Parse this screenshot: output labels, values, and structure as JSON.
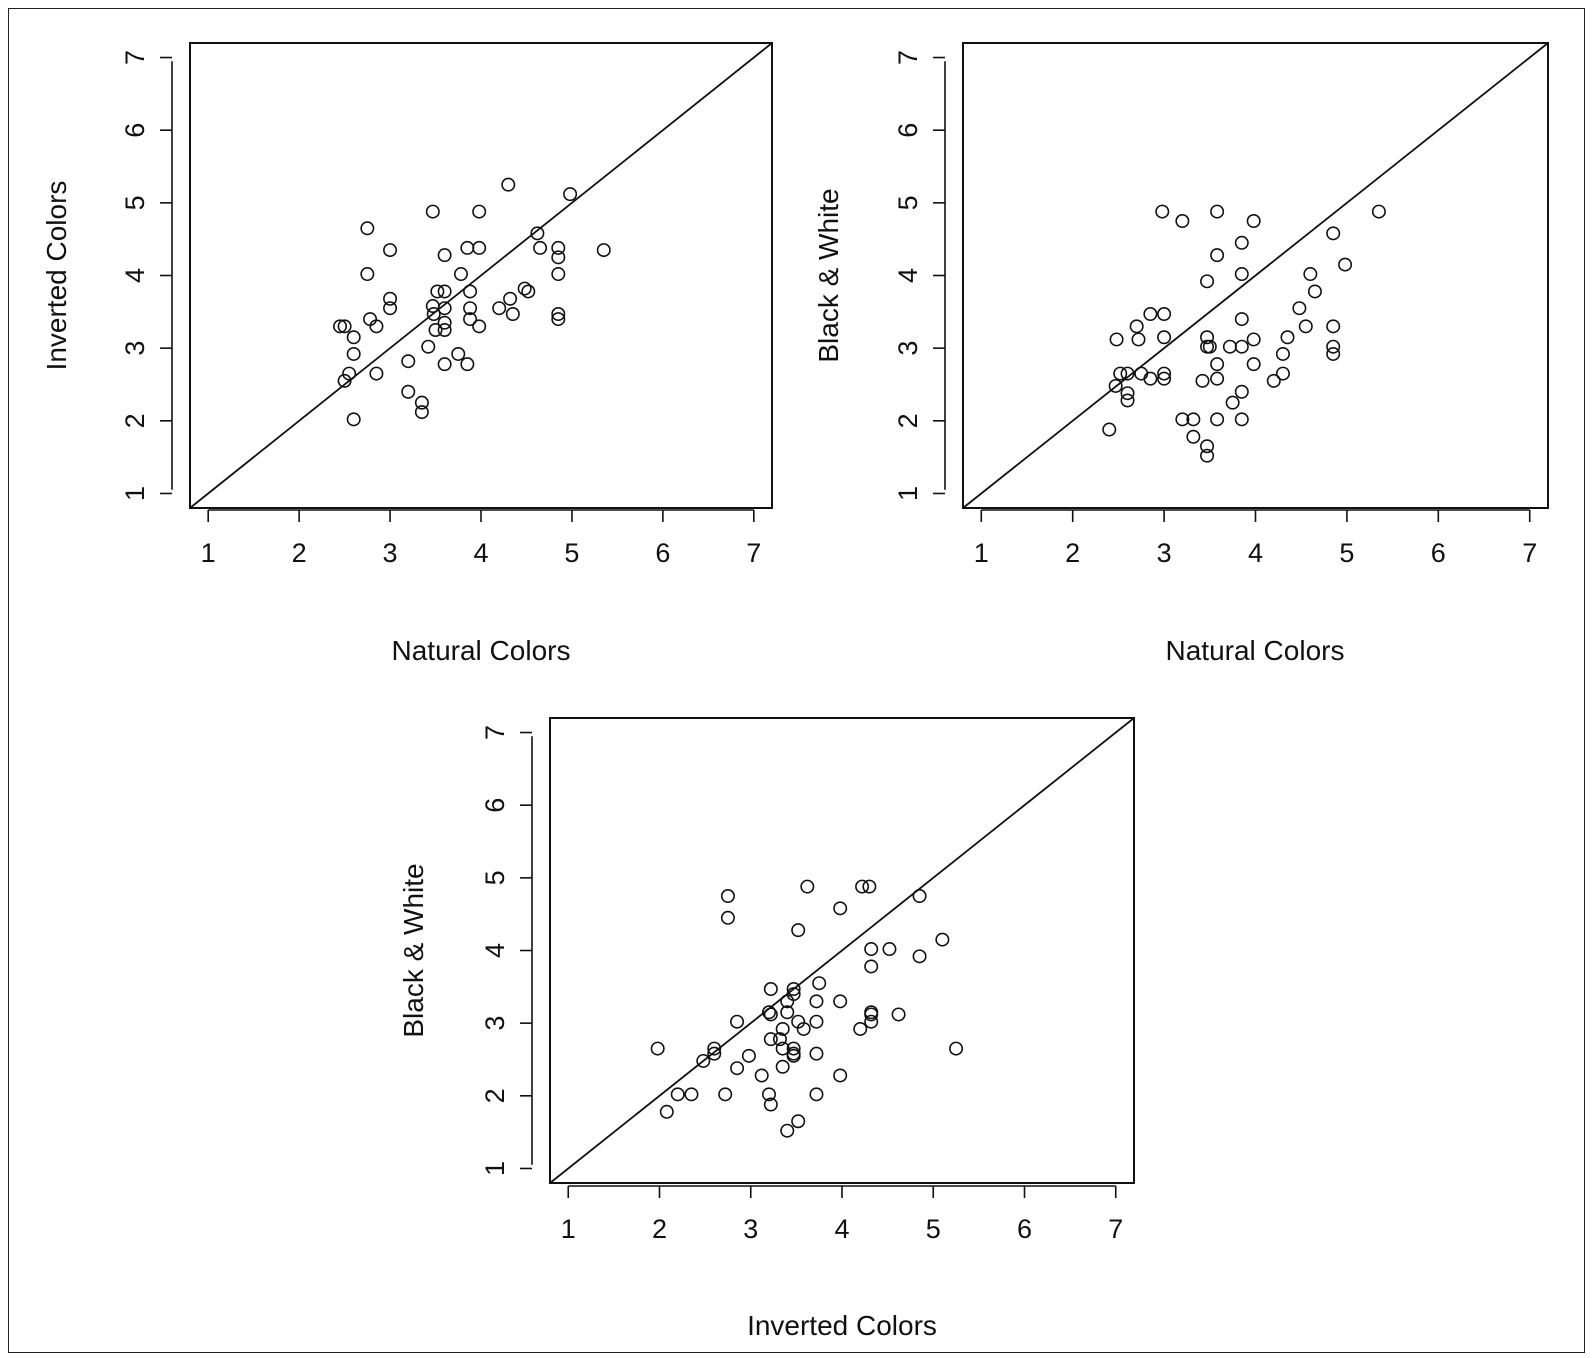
{
  "chart_data": [
    {
      "type": "scatter",
      "title": "",
      "xlabel": "Natural Colors",
      "ylabel": "Inverted Colors",
      "xlim": [
        0.8,
        7.2
      ],
      "ylim": [
        0.8,
        7.2
      ],
      "xticks": [
        "1",
        "2",
        "3",
        "4",
        "5",
        "6",
        "7"
      ],
      "yticks": [
        "1",
        "2",
        "3",
        "4",
        "5",
        "6",
        "7"
      ],
      "reference_line": "y = x",
      "points": [
        [
          2.45,
          3.3
        ],
        [
          2.5,
          3.3
        ],
        [
          2.5,
          2.55
        ],
        [
          2.55,
          2.65
        ],
        [
          2.6,
          3.15
        ],
        [
          2.6,
          2.92
        ],
        [
          2.6,
          2.02
        ],
        [
          2.75,
          4.65
        ],
        [
          2.75,
          4.02
        ],
        [
          2.78,
          3.4
        ],
        [
          2.85,
          3.3
        ],
        [
          2.85,
          2.65
        ],
        [
          3.0,
          4.35
        ],
        [
          3.0,
          3.68
        ],
        [
          3.0,
          3.55
        ],
        [
          3.2,
          2.82
        ],
        [
          3.2,
          2.4
        ],
        [
          3.35,
          2.25
        ],
        [
          3.35,
          2.12
        ],
        [
          3.42,
          3.02
        ],
        [
          3.47,
          4.88
        ],
        [
          3.47,
          3.58
        ],
        [
          3.48,
          3.47
        ],
        [
          3.5,
          3.25
        ],
        [
          3.52,
          3.78
        ],
        [
          3.6,
          4.28
        ],
        [
          3.6,
          3.78
        ],
        [
          3.6,
          3.55
        ],
        [
          3.6,
          3.35
        ],
        [
          3.6,
          3.25
        ],
        [
          3.6,
          2.78
        ],
        [
          3.75,
          2.92
        ],
        [
          3.78,
          4.02
        ],
        [
          3.85,
          4.38
        ],
        [
          3.85,
          2.78
        ],
        [
          3.88,
          3.78
        ],
        [
          3.88,
          3.55
        ],
        [
          3.88,
          3.4
        ],
        [
          3.98,
          4.88
        ],
        [
          3.98,
          4.38
        ],
        [
          3.98,
          3.3
        ],
        [
          4.2,
          3.55
        ],
        [
          4.3,
          5.25
        ],
        [
          4.32,
          3.68
        ],
        [
          4.35,
          3.47
        ],
        [
          4.48,
          3.82
        ],
        [
          4.52,
          3.78
        ],
        [
          4.62,
          4.58
        ],
        [
          4.65,
          4.38
        ],
        [
          4.85,
          4.38
        ],
        [
          4.85,
          4.25
        ],
        [
          4.85,
          4.02
        ],
        [
          4.85,
          3.47
        ],
        [
          4.85,
          3.4
        ],
        [
          4.98,
          5.12
        ],
        [
          5.35,
          4.35
        ]
      ]
    },
    {
      "type": "scatter",
      "title": "",
      "xlabel": "Natural Colors",
      "ylabel": "Black & White",
      "xlim": [
        0.8,
        7.2
      ],
      "ylim": [
        0.8,
        7.2
      ],
      "xticks": [
        "1",
        "2",
        "3",
        "4",
        "5",
        "6",
        "7"
      ],
      "yticks": [
        "1",
        "2",
        "3",
        "4",
        "5",
        "6",
        "7"
      ],
      "reference_line": "y = x",
      "points": [
        [
          2.4,
          1.88
        ],
        [
          2.47,
          2.48
        ],
        [
          2.48,
          3.12
        ],
        [
          2.52,
          2.65
        ],
        [
          2.6,
          2.65
        ],
        [
          2.6,
          2.38
        ],
        [
          2.6,
          2.28
        ],
        [
          2.7,
          3.3
        ],
        [
          2.72,
          3.12
        ],
        [
          2.75,
          2.65
        ],
        [
          2.85,
          3.47
        ],
        [
          2.85,
          2.58
        ],
        [
          2.98,
          4.88
        ],
        [
          3.0,
          3.47
        ],
        [
          3.0,
          3.15
        ],
        [
          3.0,
          2.65
        ],
        [
          3.0,
          2.58
        ],
        [
          3.2,
          4.75
        ],
        [
          3.2,
          2.02
        ],
        [
          3.32,
          2.02
        ],
        [
          3.32,
          1.78
        ],
        [
          3.42,
          2.55
        ],
        [
          3.47,
          3.92
        ],
        [
          3.47,
          3.15
        ],
        [
          3.47,
          3.02
        ],
        [
          3.47,
          1.65
        ],
        [
          3.47,
          1.52
        ],
        [
          3.5,
          3.02
        ],
        [
          3.58,
          4.88
        ],
        [
          3.58,
          4.28
        ],
        [
          3.58,
          2.78
        ],
        [
          3.58,
          2.58
        ],
        [
          3.58,
          2.02
        ],
        [
          3.72,
          3.02
        ],
        [
          3.75,
          2.25
        ],
        [
          3.85,
          4.45
        ],
        [
          3.85,
          4.02
        ],
        [
          3.85,
          3.4
        ],
        [
          3.85,
          3.02
        ],
        [
          3.85,
          2.4
        ],
        [
          3.85,
          2.02
        ],
        [
          3.98,
          4.75
        ],
        [
          3.98,
          3.12
        ],
        [
          3.98,
          2.78
        ],
        [
          4.2,
          2.55
        ],
        [
          4.3,
          2.92
        ],
        [
          4.3,
          2.65
        ],
        [
          4.35,
          3.15
        ],
        [
          4.48,
          3.55
        ],
        [
          4.55,
          3.3
        ],
        [
          4.6,
          4.02
        ],
        [
          4.65,
          3.78
        ],
        [
          4.85,
          4.58
        ],
        [
          4.85,
          3.3
        ],
        [
          4.85,
          3.02
        ],
        [
          4.85,
          2.92
        ],
        [
          4.98,
          4.15
        ],
        [
          5.35,
          4.88
        ]
      ]
    },
    {
      "type": "scatter",
      "title": "",
      "xlabel": "Inverted Colors",
      "ylabel": "Black & White",
      "xlim": [
        0.8,
        7.2
      ],
      "ylim": [
        0.8,
        7.2
      ],
      "xticks": [
        "1",
        "2",
        "3",
        "4",
        "5",
        "6",
        "7"
      ],
      "yticks": [
        "1",
        "2",
        "3",
        "4",
        "5",
        "6",
        "7"
      ],
      "reference_line": "y = x",
      "points": [
        [
          1.98,
          2.65
        ],
        [
          2.08,
          1.78
        ],
        [
          2.2,
          2.02
        ],
        [
          2.35,
          2.02
        ],
        [
          2.48,
          2.48
        ],
        [
          2.6,
          2.65
        ],
        [
          2.6,
          2.58
        ],
        [
          2.72,
          2.02
        ],
        [
          2.75,
          4.75
        ],
        [
          2.75,
          4.45
        ],
        [
          2.85,
          3.02
        ],
        [
          2.85,
          2.38
        ],
        [
          2.98,
          2.55
        ],
        [
          3.12,
          2.28
        ],
        [
          3.2,
          3.15
        ],
        [
          3.2,
          2.02
        ],
        [
          3.22,
          3.47
        ],
        [
          3.22,
          3.12
        ],
        [
          3.22,
          2.78
        ],
        [
          3.22,
          1.88
        ],
        [
          3.32,
          2.78
        ],
        [
          3.35,
          2.92
        ],
        [
          3.35,
          2.65
        ],
        [
          3.35,
          2.4
        ],
        [
          3.4,
          3.3
        ],
        [
          3.4,
          3.15
        ],
        [
          3.4,
          1.52
        ],
        [
          3.47,
          3.47
        ],
        [
          3.47,
          3.4
        ],
        [
          3.47,
          2.65
        ],
        [
          3.47,
          2.58
        ],
        [
          3.47,
          2.55
        ],
        [
          3.52,
          4.28
        ],
        [
          3.52,
          3.02
        ],
        [
          3.52,
          1.65
        ],
        [
          3.58,
          2.92
        ],
        [
          3.62,
          4.88
        ],
        [
          3.72,
          3.3
        ],
        [
          3.72,
          3.02
        ],
        [
          3.72,
          2.58
        ],
        [
          3.72,
          2.02
        ],
        [
          3.75,
          3.55
        ],
        [
          3.98,
          4.58
        ],
        [
          3.98,
          3.3
        ],
        [
          3.98,
          2.28
        ],
        [
          4.2,
          2.92
        ],
        [
          4.22,
          4.88
        ],
        [
          4.3,
          4.88
        ],
        [
          4.32,
          4.02
        ],
        [
          4.32,
          3.78
        ],
        [
          4.32,
          3.15
        ],
        [
          4.32,
          3.12
        ],
        [
          4.32,
          3.02
        ],
        [
          4.52,
          4.02
        ],
        [
          4.62,
          3.12
        ],
        [
          4.85,
          4.75
        ],
        [
          4.85,
          3.92
        ],
        [
          5.1,
          4.15
        ],
        [
          5.25,
          2.65
        ]
      ]
    }
  ]
}
